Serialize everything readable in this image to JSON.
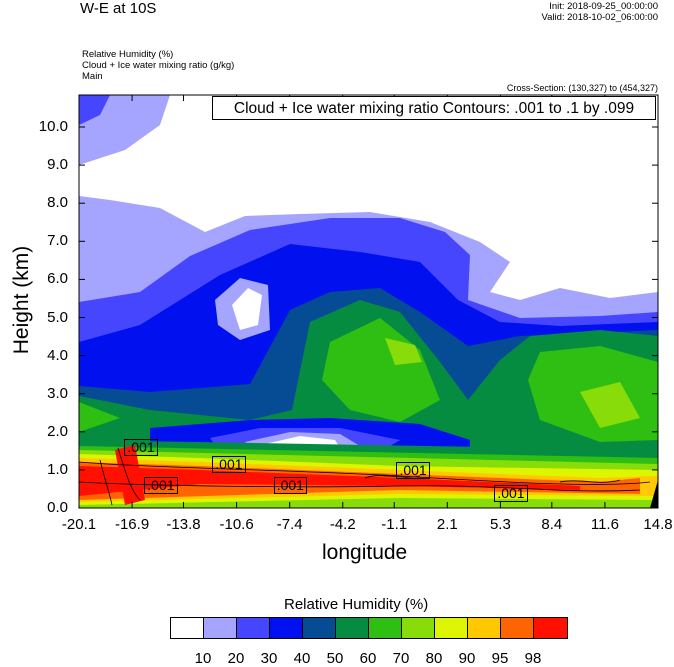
{
  "header": {
    "title": "W-E at 10S",
    "init": "Init: 2018-09-25_00:00:00",
    "valid": "Valid: 2018-10-02_06:00:00",
    "fields": [
      "Relative Humidity   (%)",
      "Cloud + Ice water mixing ratio   (g/kg)",
      "Main"
    ],
    "cross_section": "Cross-Section: (130,327) to (454,327)"
  },
  "chart_data": {
    "type": "contour",
    "title": "Cloud + Ice water mixing ratio Contours: .001 to .1 by .099",
    "xlabel": "longitude",
    "ylabel": "Height (km)",
    "xlim": [
      -20.1,
      14.8
    ],
    "ylim": [
      0,
      10.84
    ],
    "xticks": [
      -20.1,
      -16.9,
      -13.8,
      -10.6,
      -7.4,
      -4.2,
      -1.1,
      2.1,
      5.3,
      8.4,
      11.6,
      14.8
    ],
    "yticks": [
      0.0,
      1.0,
      2.0,
      3.0,
      4.0,
      5.0,
      6.0,
      7.0,
      8.0,
      9.0,
      10.0
    ],
    "contour_labels": [
      {
        "text": ".001",
        "lon": -16.4,
        "height": 1.6
      },
      {
        "text": ".001",
        "lon": -11.1,
        "height": 1.15
      },
      {
        "text": ".001",
        "lon": -15.2,
        "height": 0.6
      },
      {
        "text": ".001",
        "lon": -7.4,
        "height": 0.6
      },
      {
        "text": ".001",
        "lon": 0.0,
        "height": 1.0
      },
      {
        "text": ".001",
        "lon": 5.9,
        "height": 0.4
      }
    ],
    "colorbar": {
      "title": "Relative Humidity  (%)",
      "colors": [
        "#ffffff",
        "#a5a5ff",
        "#4646ff",
        "#0010ee",
        "#064c94",
        "#068c40",
        "#2fbe12",
        "#88dc0a",
        "#ddf500",
        "#ffc800",
        "#ff6400",
        "#ff1000"
      ],
      "labels": [
        "10",
        "20",
        "30",
        "40",
        "50",
        "60",
        "70",
        "80",
        "90",
        "95",
        "98"
      ]
    }
  }
}
